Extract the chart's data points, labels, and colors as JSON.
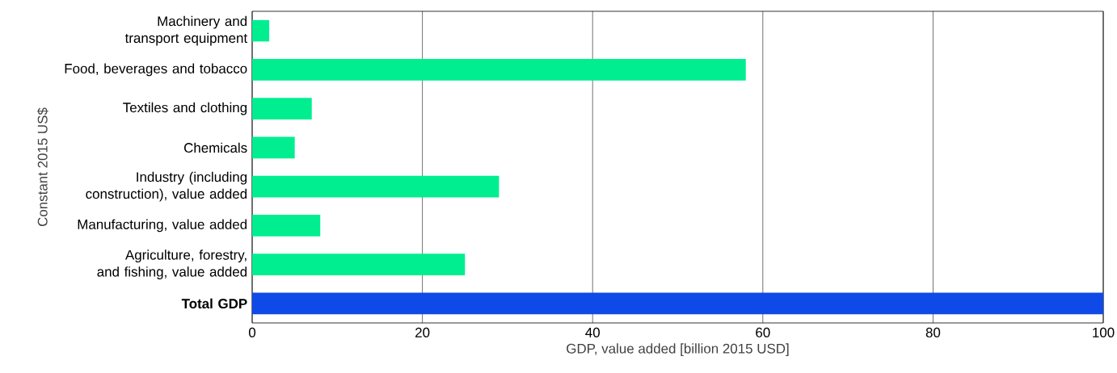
{
  "chart_data": {
    "type": "bar",
    "orientation": "horizontal",
    "categories": [
      "Machinery and transport equipment",
      "Food, beverages and tobacco",
      "Textiles and clothing",
      "Chemicals",
      "Industry (including construction), value added",
      "Manufacturing, value added",
      "Agriculture, forestry, and fishing, value added",
      "**Total GDP**"
    ],
    "values": [
      2,
      58,
      7,
      5,
      29,
      8,
      25,
      100
    ],
    "colors": [
      "#00ee90",
      "#00ee90",
      "#00ee90",
      "#00ee90",
      "#00ee90",
      "#00ee90",
      "#00ee90",
      "#0f4ae8"
    ],
    "xlabel": "GDP, value added [billion 2015 USD]",
    "ylabel": "Constant 2015 US$",
    "xlim": [
      0,
      100
    ],
    "xticks": [
      0,
      20,
      40,
      60,
      80,
      100
    ],
    "grid": "x"
  }
}
